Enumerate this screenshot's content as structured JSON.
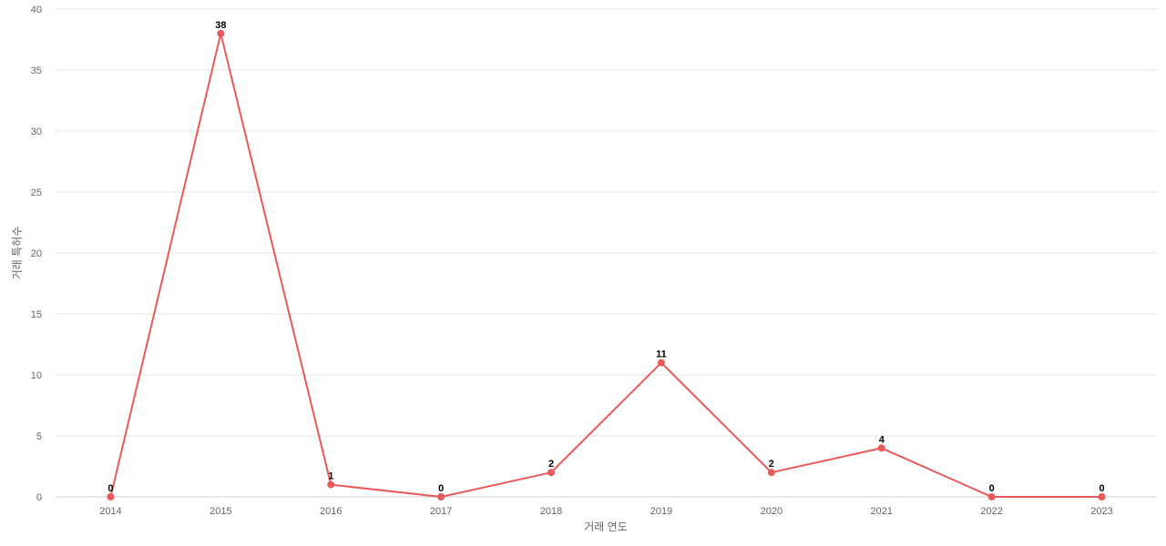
{
  "chart_data": {
    "type": "line",
    "title": "",
    "xlabel": "거래 연도",
    "ylabel": "거래 특허수",
    "categories": [
      "2014",
      "2015",
      "2016",
      "2017",
      "2018",
      "2019",
      "2020",
      "2021",
      "2022",
      "2023"
    ],
    "series": [
      {
        "values": [
          0,
          38,
          1,
          0,
          2,
          11,
          2,
          4,
          0,
          0
        ],
        "color": "#e85a5a"
      }
    ],
    "ylim": [
      0,
      40
    ],
    "yticks": [
      0,
      5,
      10,
      15,
      20,
      25,
      30,
      35,
      40
    ],
    "grid": true,
    "legend": "none",
    "data_labels": true
  }
}
